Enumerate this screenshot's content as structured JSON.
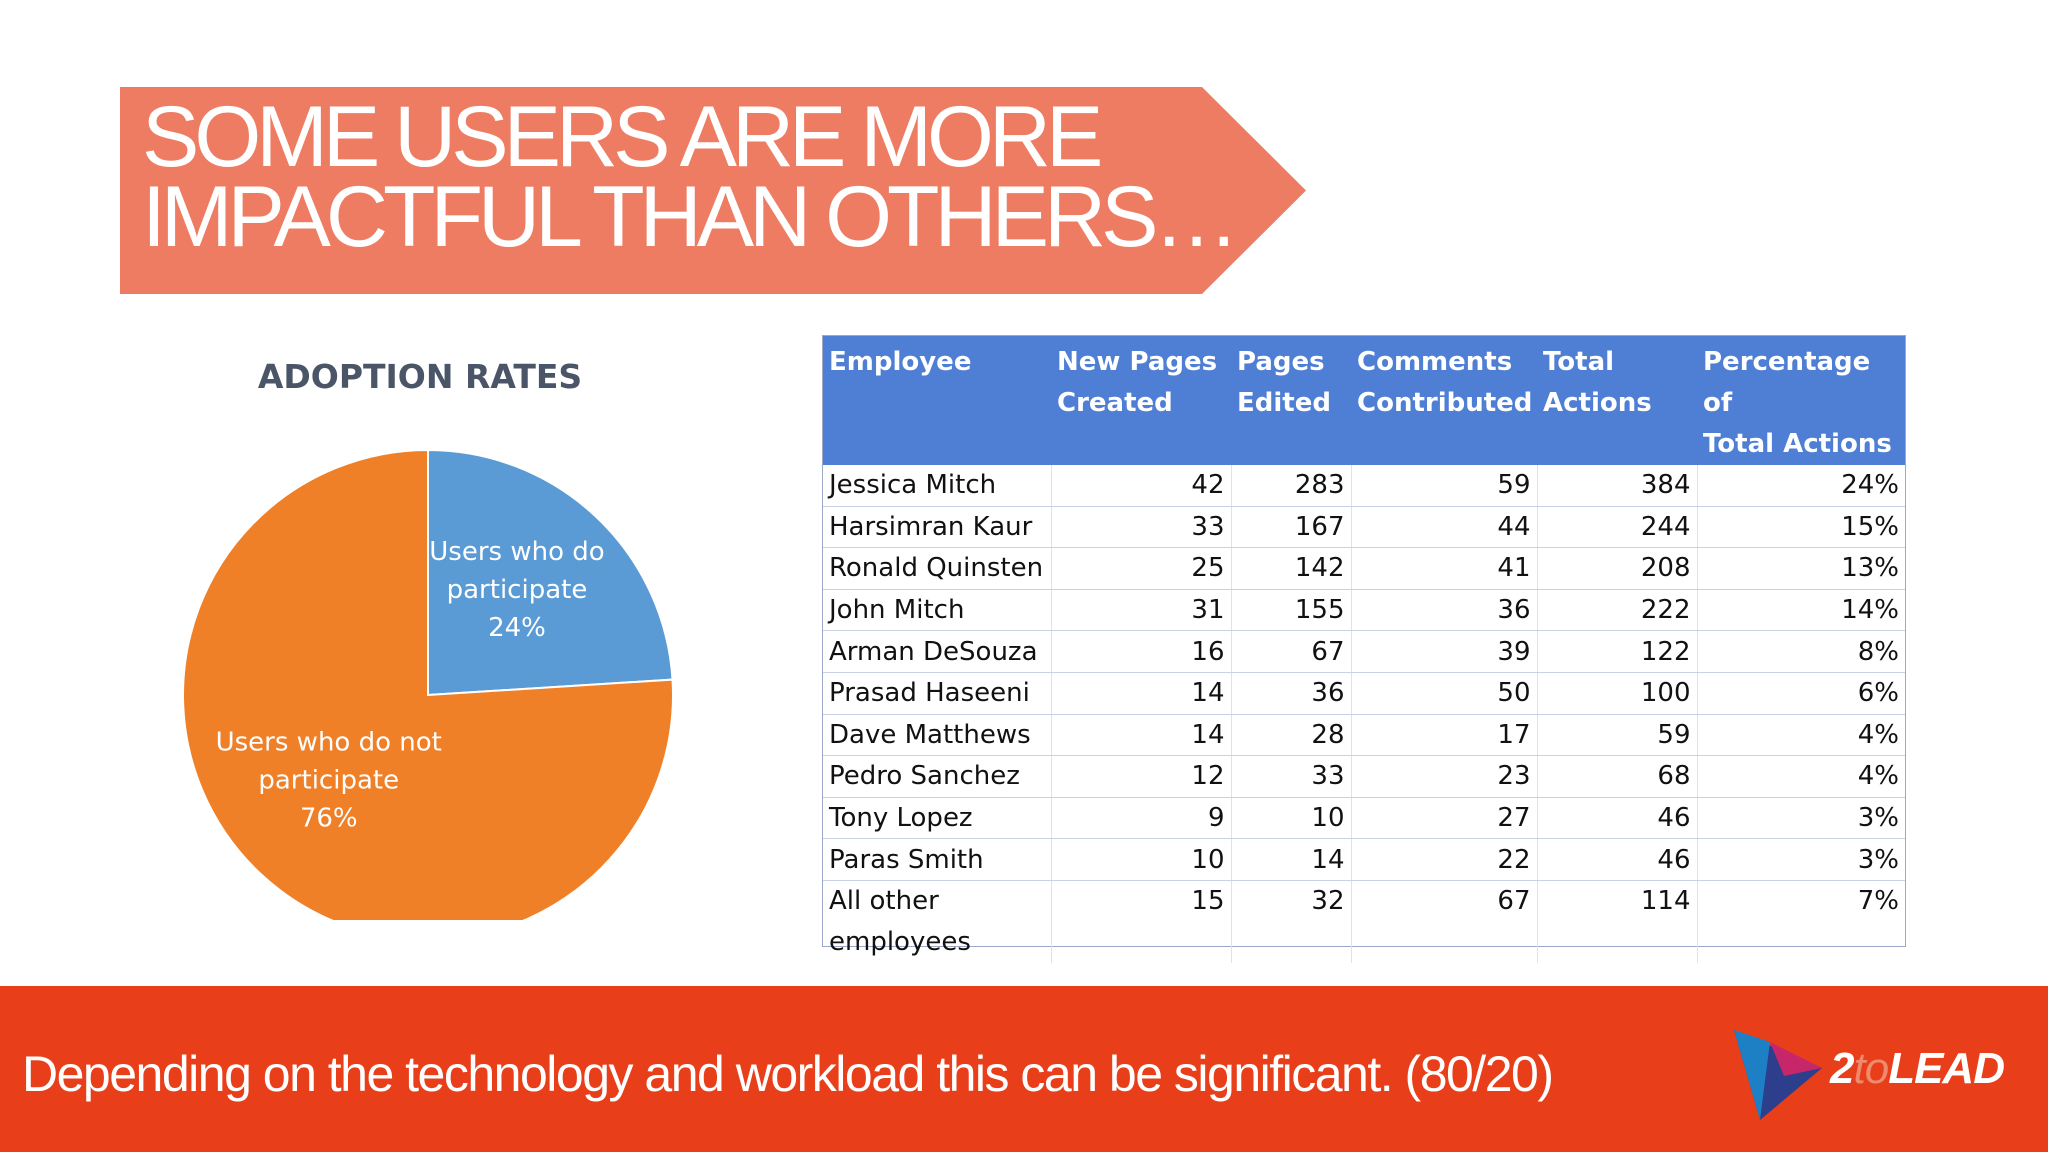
{
  "banner": {
    "line1": "SOME USERS ARE MORE",
    "line2": "IMPACTFUL THAN OTHERS…",
    "color": "#ee7c62"
  },
  "chart_data": {
    "type": "pie",
    "title": "ADOPTION RATES",
    "slices": [
      {
        "label_lines": [
          "Users who do",
          "participate",
          "24%"
        ],
        "value": 24,
        "color": "#5b9bd5"
      },
      {
        "label_lines": [
          "Users who do not",
          "participate",
          "76%"
        ],
        "value": 76,
        "color": "#f08028"
      }
    ]
  },
  "table": {
    "headers": [
      [
        "Employee"
      ],
      [
        "New Pages",
        "Created"
      ],
      [
        "Pages",
        "Edited"
      ],
      [
        "Comments",
        "Contributed"
      ],
      [
        "Total",
        "Actions"
      ],
      [
        "Percentage of",
        "Total Actions"
      ]
    ],
    "rows": [
      [
        "Jessica Mitch",
        "42",
        "283",
        "59",
        "384",
        "24%"
      ],
      [
        "Harsimran Kaur",
        "33",
        "167",
        "44",
        "244",
        "15%"
      ],
      [
        "Ronald Quinsten",
        "25",
        "142",
        "41",
        "208",
        "13%"
      ],
      [
        "John Mitch",
        "31",
        "155",
        "36",
        "222",
        "14%"
      ],
      [
        "Arman DeSouza",
        "16",
        "67",
        "39",
        "122",
        "8%"
      ],
      [
        "Prasad Haseeni",
        "14",
        "36",
        "50",
        "100",
        "6%"
      ],
      [
        "Dave Matthews",
        "14",
        "28",
        "17",
        "59",
        "4%"
      ],
      [
        "Pedro Sanchez",
        "12",
        "33",
        "23",
        "68",
        "4%"
      ],
      [
        "Tony Lopez",
        "9",
        "10",
        "27",
        "46",
        "3%"
      ],
      [
        "Paras Smith",
        "10",
        "14",
        "22",
        "46",
        "3%"
      ],
      [
        "All other employees",
        "15",
        "32",
        "67",
        "114",
        "7%"
      ]
    ],
    "header_color": "#4f7fd4"
  },
  "footer": {
    "text": "Depending on the technology and workload this can be significant. (80/20)",
    "color": "#e83f1a"
  },
  "logo": {
    "part1": "2",
    "part2": "to",
    "part3": "LEAD",
    "icon": "play-triangle-icon"
  }
}
